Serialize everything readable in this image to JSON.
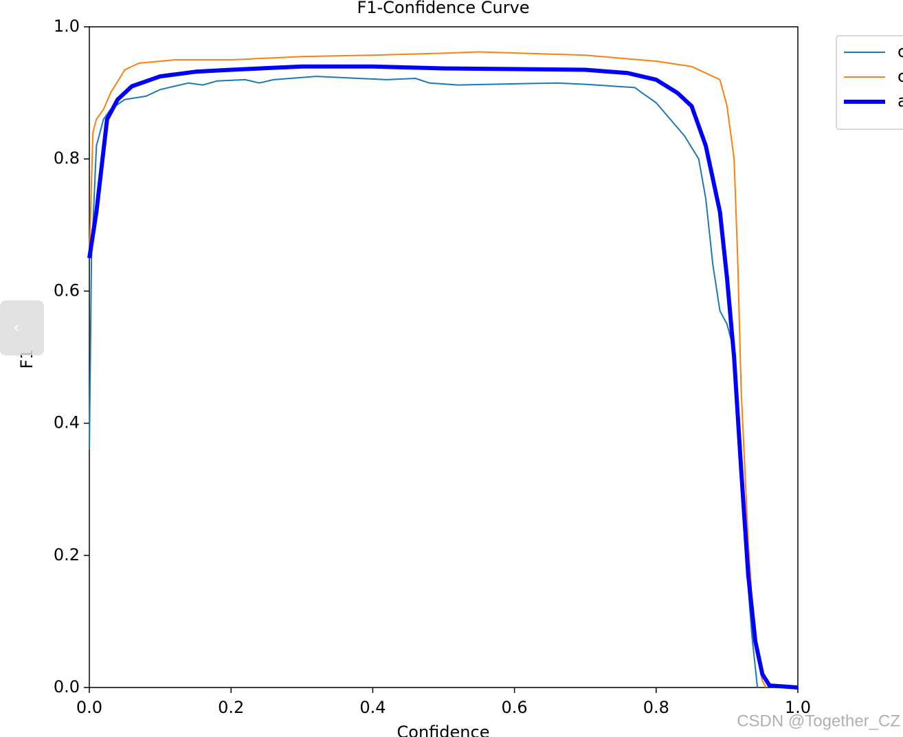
{
  "chart_data": {
    "type": "line",
    "title": "F1-Confidence Curve",
    "xlabel": "Confidence",
    "ylabel": "F1",
    "xlim": [
      0,
      1
    ],
    "ylim": [
      0,
      1
    ],
    "xticks": [
      {
        "value": 0,
        "label": "0.0"
      },
      0.2,
      0.4,
      0.6,
      0.8,
      {
        "value": 1,
        "label": "1.0"
      }
    ],
    "yticks": [
      {
        "value": 0,
        "label": "0.0"
      },
      0.2,
      0.4,
      0.6,
      0.8,
      {
        "value": 1,
        "label": "1.0"
      }
    ],
    "legend": "upper-right-outside",
    "series": [
      {
        "name": "c",
        "color": "#1f77b4",
        "width": 2,
        "x": [
          0,
          0.003,
          0.01,
          0.02,
          0.03,
          0.05,
          0.08,
          0.1,
          0.14,
          0.16,
          0.18,
          0.22,
          0.24,
          0.26,
          0.32,
          0.42,
          0.46,
          0.48,
          0.52,
          0.66,
          0.7,
          0.77,
          0.78,
          0.8,
          0.82,
          0.84,
          0.86,
          0.87,
          0.88,
          0.89,
          0.9,
          0.91,
          0.92,
          0.93,
          0.935,
          0.94,
          0.943
        ],
        "values": [
          0.36,
          0.65,
          0.82,
          0.86,
          0.875,
          0.89,
          0.895,
          0.905,
          0.915,
          0.912,
          0.918,
          0.92,
          0.915,
          0.92,
          0.925,
          0.92,
          0.922,
          0.915,
          0.912,
          0.915,
          0.913,
          0.908,
          0.9,
          0.885,
          0.86,
          0.835,
          0.8,
          0.74,
          0.64,
          0.57,
          0.55,
          0.51,
          0.35,
          0.15,
          0.08,
          0.03,
          0
        ]
      },
      {
        "name": "c",
        "color": "#ff7f0e",
        "width": 2,
        "x": [
          0,
          0.005,
          0.01,
          0.02,
          0.03,
          0.05,
          0.07,
          0.12,
          0.2,
          0.3,
          0.4,
          0.5,
          0.55,
          0.7,
          0.8,
          0.85,
          0.87,
          0.89,
          0.9,
          0.91,
          0.915,
          0.92,
          0.93,
          0.94,
          0.95,
          0.955
        ],
        "values": [
          0.65,
          0.84,
          0.86,
          0.875,
          0.9,
          0.935,
          0.945,
          0.95,
          0.95,
          0.955,
          0.957,
          0.96,
          0.962,
          0.957,
          0.948,
          0.94,
          0.93,
          0.92,
          0.88,
          0.8,
          0.65,
          0.45,
          0.22,
          0.06,
          0.01,
          0
        ]
      },
      {
        "name": "a",
        "color": "#0000ff",
        "width": 6,
        "x": [
          0,
          0.01,
          0.025,
          0.04,
          0.06,
          0.1,
          0.15,
          0.2,
          0.3,
          0.4,
          0.5,
          0.7,
          0.76,
          0.8,
          0.83,
          0.85,
          0.87,
          0.89,
          0.9,
          0.91,
          0.92,
          0.93,
          0.94,
          0.95,
          0.96,
          1
        ],
        "values": [
          0.65,
          0.72,
          0.86,
          0.89,
          0.91,
          0.925,
          0.932,
          0.935,
          0.94,
          0.94,
          0.937,
          0.935,
          0.93,
          0.92,
          0.9,
          0.88,
          0.82,
          0.72,
          0.62,
          0.5,
          0.33,
          0.17,
          0.07,
          0.02,
          0.003,
          0
        ]
      }
    ]
  },
  "overlay": {
    "back_button": "‹",
    "watermark": "CSDN @Together_CZ"
  }
}
